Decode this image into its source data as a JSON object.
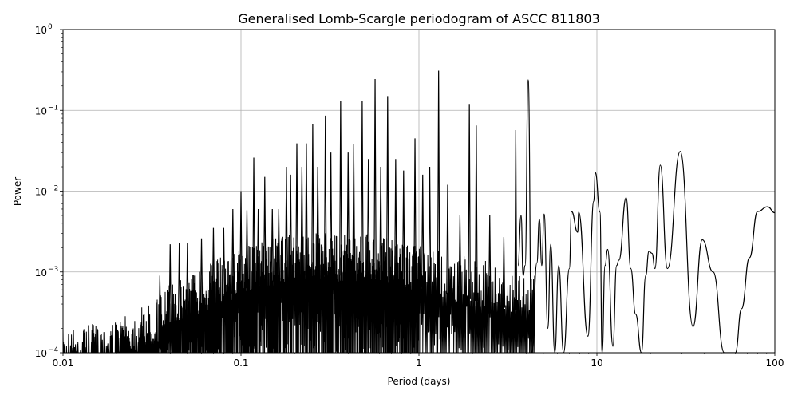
{
  "chart_data": {
    "type": "line",
    "title": "Generalised Lomb-Scargle periodogram of ASCC 811803",
    "xlabel": "Period (days)",
    "ylabel": "Power",
    "xscale": "log",
    "yscale": "log",
    "xlim": [
      0.01,
      100
    ],
    "ylim": [
      0.0001,
      1
    ],
    "grid": true,
    "line_color": "#000000",
    "grid_color": "#b0b0b0",
    "x_ticks": [
      {
        "value": 0.01,
        "label": "0.01"
      },
      {
        "value": 0.1,
        "label": "0.1"
      },
      {
        "value": 1,
        "label": "1"
      },
      {
        "value": 10,
        "label": "10"
      },
      {
        "value": 100,
        "label": "100"
      }
    ],
    "y_ticks": [
      {
        "value": 0.0001,
        "base": "10",
        "exp": "−4"
      },
      {
        "value": 0.001,
        "base": "10",
        "exp": "−3"
      },
      {
        "value": 0.01,
        "base": "10",
        "exp": "−2"
      },
      {
        "value": 0.1,
        "base": "10",
        "exp": "−1"
      },
      {
        "value": 1,
        "base": "10",
        "exp": "0"
      }
    ],
    "noise_envelope": [
      [
        0.01,
        0.0002
      ],
      [
        0.02,
        0.00025
      ],
      [
        0.03,
        0.0004
      ],
      [
        0.04,
        0.0007
      ],
      [
        0.06,
        0.0012
      ],
      [
        0.1,
        0.002
      ],
      [
        0.2,
        0.003
      ],
      [
        0.5,
        0.003
      ],
      [
        1,
        0.0022
      ],
      [
        2,
        0.0015
      ],
      [
        3,
        0.0012
      ],
      [
        4.5,
        0.001
      ]
    ],
    "peaks": [
      [
        0.035,
        0.0009
      ],
      [
        0.04,
        0.0022
      ],
      [
        0.045,
        0.0023
      ],
      [
        0.05,
        0.0023
      ],
      [
        0.06,
        0.0026
      ],
      [
        0.07,
        0.0035
      ],
      [
        0.08,
        0.0035
      ],
      [
        0.09,
        0.006
      ],
      [
        0.1,
        0.01
      ],
      [
        0.108,
        0.0058
      ],
      [
        0.118,
        0.026
      ],
      [
        0.125,
        0.006
      ],
      [
        0.136,
        0.015
      ],
      [
        0.15,
        0.006
      ],
      [
        0.163,
        0.006
      ],
      [
        0.18,
        0.02
      ],
      [
        0.19,
        0.016
      ],
      [
        0.206,
        0.039
      ],
      [
        0.22,
        0.02
      ],
      [
        0.233,
        0.039
      ],
      [
        0.253,
        0.068
      ],
      [
        0.27,
        0.02
      ],
      [
        0.298,
        0.086
      ],
      [
        0.32,
        0.03
      ],
      [
        0.363,
        0.13
      ],
      [
        0.4,
        0.03
      ],
      [
        0.43,
        0.038
      ],
      [
        0.48,
        0.13
      ],
      [
        0.52,
        0.025
      ],
      [
        0.567,
        0.244
      ],
      [
        0.61,
        0.02
      ],
      [
        0.667,
        0.15
      ],
      [
        0.74,
        0.025
      ],
      [
        0.82,
        0.018
      ],
      [
        0.95,
        0.045
      ],
      [
        1.05,
        0.016
      ],
      [
        1.15,
        0.02
      ],
      [
        1.29,
        0.31
      ],
      [
        1.45,
        0.012
      ],
      [
        1.7,
        0.005
      ],
      [
        1.92,
        0.12
      ],
      [
        2.1,
        0.065
      ],
      [
        2.5,
        0.005
      ],
      [
        3.0,
        0.0027
      ],
      [
        3.5,
        0.057
      ]
    ],
    "tail": [
      [
        3.6,
        0.0012
      ],
      [
        3.75,
        0.005
      ],
      [
        3.85,
        0.0009
      ],
      [
        3.95,
        0.0012
      ],
      [
        4.11,
        0.239
      ],
      [
        4.3,
        0.0001
      ],
      [
        4.6,
        0.0013
      ],
      [
        4.75,
        0.0045
      ],
      [
        4.9,
        0.0012
      ],
      [
        5.05,
        0.0052
      ],
      [
        5.3,
        0.0002
      ],
      [
        5.5,
        0.0022
      ],
      [
        5.8,
        0.0001
      ],
      [
        6.1,
        0.0012
      ],
      [
        6.5,
        0.0001
      ],
      [
        7.0,
        0.0011
      ],
      [
        7.2,
        0.0056
      ],
      [
        7.8,
        0.0031
      ],
      [
        7.9,
        0.0055
      ],
      [
        8.9,
        0.00016
      ],
      [
        9.6,
        0.0075
      ],
      [
        9.8,
        0.017
      ],
      [
        10.4,
        0.0055
      ],
      [
        10.7,
        0.0001
      ],
      [
        11.1,
        0.0012
      ],
      [
        11.5,
        0.0019
      ],
      [
        12.3,
        0.00012
      ],
      [
        12.9,
        0.0012
      ],
      [
        13.3,
        0.0014
      ],
      [
        14.6,
        0.0083
      ],
      [
        15.5,
        0.0011
      ],
      [
        16.5,
        0.0003
      ],
      [
        17.8,
        0.0001
      ],
      [
        18.8,
        0.0009
      ],
      [
        19.6,
        0.0018
      ],
      [
        20.4,
        0.0017
      ],
      [
        21.2,
        0.0011
      ],
      [
        22.7,
        0.021
      ],
      [
        24.9,
        0.0011
      ],
      [
        29.4,
        0.031
      ],
      [
        34.7,
        0.00021
      ],
      [
        39.1,
        0.0025
      ],
      [
        45,
        0.001
      ],
      [
        52,
        0.0001
      ],
      [
        60,
        0.0001
      ],
      [
        65,
        0.00035
      ],
      [
        72,
        0.0015
      ],
      [
        80,
        0.0056
      ],
      [
        91,
        0.0064
      ],
      [
        100,
        0.0054
      ]
    ]
  }
}
